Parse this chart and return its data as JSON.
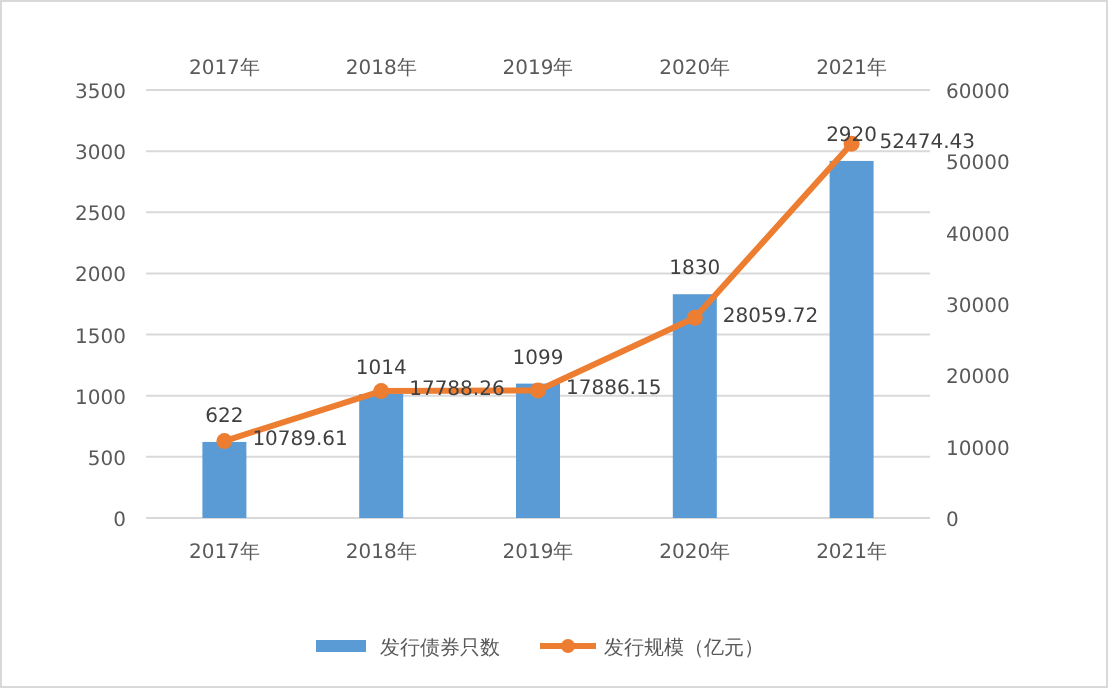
{
  "chart_data": {
    "type": "bar",
    "categories": [
      "2017年",
      "2018年",
      "2019年",
      "2020年",
      "2021年"
    ],
    "series": [
      {
        "name": "发行债券只数",
        "color": "#5b9bd5",
        "values": [
          622,
          1014,
          1099,
          1830,
          2920
        ]
      },
      {
        "name": "发行规模（亿元）",
        "type": "line",
        "axis": "y2",
        "color": "#ed7d31",
        "marker": "circle",
        "values": [
          10789.61,
          17788.26,
          17886.15,
          28059.72,
          52474.43
        ]
      }
    ],
    "ylim": [
      0,
      3500
    ],
    "yticks": [
      0,
      500,
      1000,
      1500,
      2000,
      2500,
      3000,
      3500
    ],
    "y2lim": [
      0,
      60000
    ],
    "y2ticks": [
      0,
      10000,
      20000,
      30000,
      40000,
      50000,
      60000
    ],
    "data_labels": true,
    "grid": "y",
    "legend": "bottom"
  }
}
